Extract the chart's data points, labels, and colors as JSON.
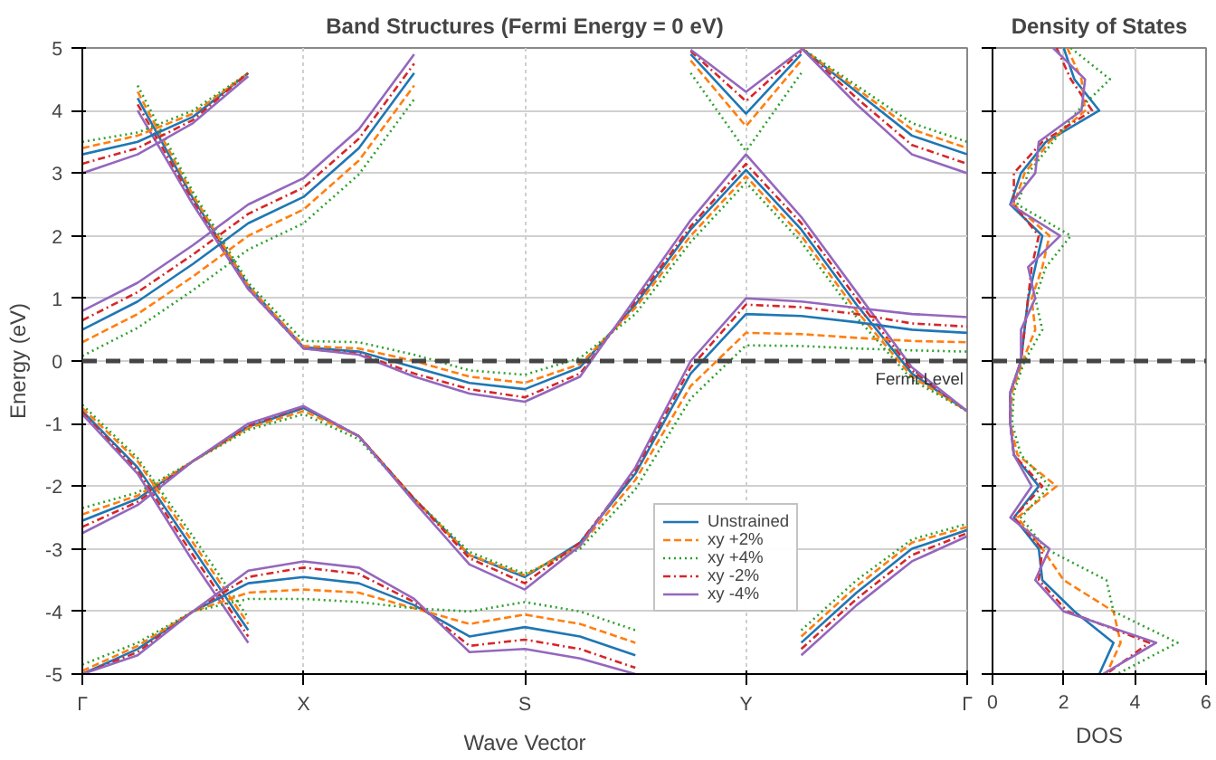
{
  "chart_data": [
    {
      "type": "line",
      "title": "Band Structures (Fermi Energy = 0 eV)",
      "xlabel": "Wave Vector",
      "ylabel": "Energy (eV)",
      "categories": [
        "Γ",
        null,
        null,
        null,
        "X",
        null,
        null,
        null,
        "S",
        null,
        null,
        null,
        "Y",
        null,
        null,
        null,
        "Γ"
      ],
      "ylim": [
        -5,
        5
      ],
      "yticks": [
        -5,
        -4,
        -3,
        -2,
        -1,
        0,
        1,
        2,
        3,
        4,
        5
      ],
      "grid": true,
      "legend": "bottom right",
      "ref_lines": [
        {
          "axis": "y",
          "value": 0,
          "label": "Fermi Level",
          "color": "#444444",
          "line_style": "dashed"
        }
      ],
      "series": [
        {
          "name": "Unstrained",
          "color": "#1f77b4",
          "line_style": "solid",
          "values": [
            null,
            4.2,
            2.6,
            1.2,
            0.22,
            0.15,
            -0.1,
            -0.35,
            -0.45,
            -0.1,
            0.9,
            2.1,
            3.05,
            2.1,
            0.9,
            -0.2,
            -0.8
          ]
        },
        {
          "name": "xy +2%",
          "color": "#ff7f0e",
          "line_style": "dashed",
          "values": [
            null,
            4.3,
            2.65,
            1.2,
            0.24,
            0.2,
            0,
            -0.25,
            -0.35,
            -0.05,
            0.85,
            2.0,
            2.95,
            2.0,
            0.8,
            -0.25,
            -0.8
          ]
        },
        {
          "name": "xy +4%",
          "color": "#2ca02c",
          "line_style": "dotted",
          "values": [
            null,
            4.4,
            2.7,
            1.25,
            0.32,
            0.3,
            0.1,
            -0.15,
            -0.22,
            0.05,
            0.75,
            1.9,
            2.85,
            1.9,
            0.7,
            -0.3,
            -0.8
          ]
        },
        {
          "name": "xy -2%",
          "color": "#d62728",
          "line_style": "dashdot",
          "values": [
            null,
            4.1,
            2.55,
            1.15,
            0.2,
            0.12,
            -0.2,
            -0.45,
            -0.58,
            -0.2,
            0.95,
            2.15,
            3.15,
            2.2,
            1.0,
            -0.15,
            -0.8
          ]
        },
        {
          "name": "xy -4%",
          "color": "#9467bd",
          "line_style": "solid",
          "values": [
            null,
            4.0,
            2.5,
            1.15,
            0.2,
            0.1,
            -0.25,
            -0.52,
            -0.65,
            -0.25,
            1.0,
            2.25,
            3.3,
            2.3,
            1.1,
            -0.1,
            -0.8
          ]
        },
        {
          "color": "#1f77b4",
          "line_style": "solid",
          "values": [
            0.5,
            0.95,
            1.55,
            2.2,
            2.62,
            3.4,
            4.6,
            null,
            null,
            null,
            null,
            null,
            null,
            null,
            null,
            null,
            null
          ]
        },
        {
          "color": "#ff7f0e",
          "line_style": "dashed",
          "values": [
            0.3,
            0.75,
            1.35,
            2.0,
            2.42,
            3.2,
            4.4,
            null,
            null,
            null,
            null,
            null,
            null,
            null,
            null,
            null,
            null
          ]
        },
        {
          "color": "#2ca02c",
          "line_style": "dotted",
          "values": [
            0.08,
            0.53,
            1.13,
            1.78,
            2.2,
            2.98,
            4.18,
            null,
            null,
            null,
            null,
            null,
            null,
            null,
            null,
            null,
            null
          ]
        },
        {
          "color": "#d62728",
          "line_style": "dashdot",
          "values": [
            0.65,
            1.1,
            1.7,
            2.35,
            2.77,
            3.55,
            4.75,
            null,
            null,
            null,
            null,
            null,
            null,
            null,
            null,
            null,
            null
          ]
        },
        {
          "color": "#9467bd",
          "line_style": "solid",
          "values": [
            0.8,
            1.25,
            1.85,
            2.5,
            2.92,
            3.7,
            4.9,
            null,
            null,
            null,
            null,
            null,
            null,
            null,
            null,
            null,
            null
          ]
        },
        {
          "color": "#1f77b4",
          "line_style": "solid",
          "values": [
            -2.55,
            -2.2,
            -1.6,
            -1.05,
            -0.75,
            -1.2,
            -2.2,
            -3.1,
            -3.45,
            -2.9,
            -1.8,
            -0.2,
            0.75,
            0.72,
            0.62,
            0.5,
            0.45
          ]
        },
        {
          "color": "#ff7f0e",
          "line_style": "dashed",
          "values": [
            -2.45,
            -2.15,
            -1.6,
            -1.07,
            -0.8,
            -1.2,
            -2.2,
            -3.1,
            -3.42,
            -2.95,
            -1.9,
            -0.4,
            0.45,
            0.43,
            0.37,
            0.32,
            0.3
          ]
        },
        {
          "color": "#2ca02c",
          "line_style": "dotted",
          "values": [
            -2.35,
            -2.1,
            -1.6,
            -1.1,
            -0.85,
            -1.25,
            -2.2,
            -3.05,
            -3.4,
            -3.0,
            -2.05,
            -0.6,
            0.25,
            0.24,
            0.2,
            0.17,
            0.15
          ]
        },
        {
          "color": "#d62728",
          "line_style": "dashdot",
          "values": [
            -2.65,
            -2.25,
            -1.6,
            -1.03,
            -0.73,
            -1.2,
            -2.2,
            -3.15,
            -3.55,
            -2.9,
            -1.75,
            -0.1,
            0.9,
            0.86,
            0.75,
            0.6,
            0.55
          ]
        },
        {
          "color": "#9467bd",
          "line_style": "solid",
          "values": [
            -2.75,
            -2.3,
            -1.6,
            -1.0,
            -0.72,
            -1.2,
            -2.25,
            -3.25,
            -3.65,
            -2.95,
            -1.7,
            0.0,
            1.0,
            0.95,
            0.85,
            0.75,
            0.7
          ]
        },
        {
          "color": "#1f77b4",
          "line_style": "solid",
          "values": [
            -0.8,
            -1.7,
            -3.0,
            -4.3,
            null,
            null,
            null,
            null,
            null,
            null,
            null,
            null,
            null,
            null,
            null,
            null,
            null
          ]
        },
        {
          "color": "#ff7f0e",
          "line_style": "dashed",
          "values": [
            -0.75,
            -1.6,
            -2.9,
            -4.2,
            null,
            null,
            null,
            null,
            null,
            null,
            null,
            null,
            null,
            null,
            null,
            null,
            null
          ]
        },
        {
          "color": "#2ca02c",
          "line_style": "dotted",
          "values": [
            -0.7,
            -1.55,
            -2.8,
            -4.1,
            null,
            null,
            null,
            null,
            null,
            null,
            null,
            null,
            null,
            null,
            null,
            null,
            null
          ]
        },
        {
          "color": "#d62728",
          "line_style": "dashdot",
          "values": [
            -0.82,
            -1.75,
            -3.1,
            -4.4,
            null,
            null,
            null,
            null,
            null,
            null,
            null,
            null,
            null,
            null,
            null,
            null,
            null
          ]
        },
        {
          "color": "#9467bd",
          "line_style": "solid",
          "values": [
            -0.85,
            -1.8,
            -3.2,
            -4.5,
            null,
            null,
            null,
            null,
            null,
            null,
            null,
            null,
            null,
            null,
            null,
            null,
            null
          ]
        },
        {
          "color": "#1f77b4",
          "line_style": "solid",
          "values": [
            -5,
            -4.6,
            -4.0,
            -3.55,
            -3.45,
            -3.55,
            -3.9,
            -4.4,
            -4.25,
            -4.4,
            -4.7,
            null,
            null,
            null,
            null,
            null,
            null
          ]
        },
        {
          "color": "#ff7f0e",
          "line_style": "dashed",
          "values": [
            -4.95,
            -4.55,
            -4.0,
            -3.7,
            -3.65,
            -3.7,
            -3.95,
            -4.2,
            -4.05,
            -4.2,
            -4.5,
            null,
            null,
            null,
            null,
            null,
            null
          ]
        },
        {
          "color": "#2ca02c",
          "line_style": "dotted",
          "values": [
            -4.85,
            -4.5,
            -4.0,
            -3.8,
            -3.8,
            -3.85,
            -3.95,
            -4.0,
            -3.85,
            -4.0,
            -4.3,
            null,
            null,
            null,
            null,
            null,
            null
          ]
        },
        {
          "color": "#d62728",
          "line_style": "dashdot",
          "values": [
            -5,
            -4.65,
            -4.0,
            -3.45,
            -3.3,
            -3.4,
            -3.85,
            -4.55,
            -4.45,
            -4.6,
            -4.9,
            null,
            null,
            null,
            null,
            null,
            null
          ]
        },
        {
          "color": "#9467bd",
          "line_style": "solid",
          "values": [
            -5,
            -4.7,
            -4.0,
            -3.35,
            -3.2,
            -3.3,
            -3.8,
            -4.65,
            -4.6,
            -4.75,
            -5,
            null,
            null,
            null,
            null,
            null,
            null
          ]
        },
        {
          "color": "#1f77b4",
          "line_style": "solid",
          "values": [
            null,
            null,
            null,
            null,
            null,
            null,
            null,
            null,
            null,
            null,
            null,
            null,
            null,
            -4.5,
            -3.7,
            -3.0,
            -2.7
          ]
        },
        {
          "color": "#ff7f0e",
          "line_style": "dashed",
          "values": [
            null,
            null,
            null,
            null,
            null,
            null,
            null,
            null,
            null,
            null,
            null,
            null,
            null,
            -4.4,
            -3.6,
            -2.9,
            -2.65
          ]
        },
        {
          "color": "#2ca02c",
          "line_style": "dotted",
          "values": [
            null,
            null,
            null,
            null,
            null,
            null,
            null,
            null,
            null,
            null,
            null,
            null,
            null,
            -4.3,
            -3.5,
            -2.85,
            -2.6
          ]
        },
        {
          "color": "#d62728",
          "line_style": "dashdot",
          "values": [
            null,
            null,
            null,
            null,
            null,
            null,
            null,
            null,
            null,
            null,
            null,
            null,
            null,
            -4.6,
            -3.8,
            -3.1,
            -2.75
          ]
        },
        {
          "color": "#9467bd",
          "line_style": "solid",
          "values": [
            null,
            null,
            null,
            null,
            null,
            null,
            null,
            null,
            null,
            null,
            null,
            null,
            null,
            -4.7,
            -3.9,
            -3.2,
            -2.8
          ]
        },
        {
          "color": "#1f77b4",
          "line_style": "solid",
          "values": [
            3.3,
            3.5,
            3.9,
            4.6,
            null,
            null,
            null,
            null,
            null,
            null,
            null,
            null,
            null,
            null,
            null,
            null,
            null
          ]
        },
        {
          "color": "#ff7f0e",
          "line_style": "dashed",
          "values": [
            3.4,
            3.6,
            3.95,
            4.6,
            null,
            null,
            null,
            null,
            null,
            null,
            null,
            null,
            null,
            null,
            null,
            null,
            null
          ]
        },
        {
          "color": "#2ca02c",
          "line_style": "dotted",
          "values": [
            3.5,
            3.65,
            4.0,
            4.6,
            null,
            null,
            null,
            null,
            null,
            null,
            null,
            null,
            null,
            null,
            null,
            null,
            null
          ]
        },
        {
          "color": "#d62728",
          "line_style": "dashdot",
          "values": [
            3.15,
            3.4,
            3.85,
            4.6,
            null,
            null,
            null,
            null,
            null,
            null,
            null,
            null,
            null,
            null,
            null,
            null,
            null
          ]
        },
        {
          "color": "#9467bd",
          "line_style": "solid",
          "values": [
            3.0,
            3.3,
            3.8,
            4.55,
            null,
            null,
            null,
            null,
            null,
            null,
            null,
            null,
            null,
            null,
            null,
            null,
            null
          ]
        },
        {
          "color": "#1f77b4",
          "line_style": "solid",
          "values": [
            null,
            null,
            null,
            null,
            null,
            null,
            null,
            null,
            null,
            null,
            null,
            4.9,
            3.95,
            4.9,
            null,
            null,
            null
          ]
        },
        {
          "color": "#ff7f0e",
          "line_style": "dashed",
          "values": [
            null,
            null,
            null,
            null,
            null,
            null,
            null,
            null,
            null,
            null,
            null,
            4.8,
            3.75,
            4.8,
            null,
            null,
            null
          ]
        },
        {
          "color": "#2ca02c",
          "line_style": "dotted",
          "values": [
            null,
            null,
            null,
            null,
            null,
            null,
            null,
            null,
            null,
            null,
            null,
            4.6,
            3.35,
            4.6,
            null,
            null,
            null
          ]
        },
        {
          "color": "#d62728",
          "line_style": "dashdot",
          "values": [
            null,
            null,
            null,
            null,
            null,
            null,
            null,
            null,
            null,
            null,
            null,
            4.95,
            4.15,
            4.95,
            null,
            null,
            null
          ]
        },
        {
          "color": "#9467bd",
          "line_style": "solid",
          "values": [
            null,
            null,
            null,
            null,
            null,
            null,
            null,
            null,
            null,
            null,
            null,
            4.97,
            4.3,
            4.97,
            null,
            null,
            null
          ]
        },
        {
          "color": "#1f77b4",
          "line_style": "solid",
          "values": [
            null,
            null,
            null,
            null,
            null,
            null,
            null,
            null,
            null,
            null,
            null,
            null,
            null,
            5,
            4.3,
            3.6,
            3.3
          ]
        },
        {
          "color": "#ff7f0e",
          "line_style": "dashed",
          "values": [
            null,
            null,
            null,
            null,
            null,
            null,
            null,
            null,
            null,
            null,
            null,
            null,
            null,
            5,
            4.35,
            3.7,
            3.4
          ]
        },
        {
          "color": "#2ca02c",
          "line_style": "dotted",
          "values": [
            null,
            null,
            null,
            null,
            null,
            null,
            null,
            null,
            null,
            null,
            null,
            null,
            null,
            5,
            4.4,
            3.8,
            3.5
          ]
        },
        {
          "color": "#d62728",
          "line_style": "dashdot",
          "values": [
            null,
            null,
            null,
            null,
            null,
            null,
            null,
            null,
            null,
            null,
            null,
            null,
            null,
            5,
            4.2,
            3.45,
            3.15
          ]
        },
        {
          "color": "#9467bd",
          "line_style": "solid",
          "values": [
            null,
            null,
            null,
            null,
            null,
            null,
            null,
            null,
            null,
            null,
            null,
            null,
            null,
            5,
            4.1,
            3.3,
            3.0
          ]
        }
      ]
    },
    {
      "type": "line",
      "title": "Density of States",
      "xlabel": "DOS",
      "xlim": [
        0,
        6
      ],
      "xticks": [
        0,
        2,
        4,
        6
      ],
      "ylim": [
        -5,
        5
      ],
      "yticks": [
        {
          "value": -5,
          "label": null
        },
        {
          "value": -4,
          "label": null
        },
        {
          "value": -3,
          "label": null
        },
        {
          "value": -2,
          "label": null
        },
        {
          "value": -1,
          "label": null
        },
        {
          "value": 0,
          "label": null
        },
        {
          "value": 1,
          "label": null
        },
        {
          "value": 2,
          "label": null
        },
        {
          "value": 3,
          "label": null
        },
        {
          "value": 4,
          "label": null
        },
        {
          "value": 5,
          "label": null
        }
      ],
      "tick_labels": "x",
      "grid": true,
      "ref_lines": [
        {
          "axis": "y",
          "value": 0,
          "color": "#444444",
          "line_style": "dashed"
        }
      ],
      "series": [
        {
          "color": "#1f77b4",
          "line_style": "solid",
          "x": [
            2.0,
            2.3,
            3.0,
            1.5,
            0.8,
            0.5,
            1.4,
            1.2,
            1.0,
            0.9,
            0.8,
            0.5,
            0.5,
            0.6,
            1.3,
            0.6,
            1.3,
            1.4,
            2.3,
            3.4,
            3.0
          ],
          "values": [
            5,
            4.5,
            4,
            3.5,
            3,
            2.5,
            2,
            1.5,
            1,
            0.5,
            0,
            -0.5,
            -1,
            -1.5,
            -2,
            -2.5,
            -3,
            -3.5,
            -4,
            -4.5,
            -5
          ]
        },
        {
          "color": "#ff7f0e",
          "line_style": "dashed",
          "x": [
            2.1,
            2.5,
            2.6,
            1.6,
            0.9,
            0.6,
            1.6,
            1.4,
            1.1,
            1.2,
            0.85,
            0.55,
            0.5,
            0.7,
            1.8,
            0.7,
            1.4,
            2.0,
            3.4,
            3.6,
            3.2
          ],
          "values": [
            5,
            4.5,
            4,
            3.5,
            3,
            2.5,
            2,
            1.5,
            1,
            0.5,
            0,
            -0.5,
            -1,
            -1.5,
            -2,
            -2.5,
            -3,
            -3.5,
            -4,
            -4.5,
            -5
          ]
        },
        {
          "color": "#2ca02c",
          "line_style": "dotted",
          "x": [
            2.2,
            3.3,
            2.4,
            1.7,
            1.0,
            0.7,
            2.2,
            1.5,
            1.2,
            1.4,
            0.9,
            0.6,
            0.55,
            0.8,
            1.6,
            0.8,
            1.5,
            3.2,
            3.4,
            5.2,
            3.5
          ],
          "values": [
            5,
            4.5,
            4,
            3.5,
            3,
            2.5,
            2,
            1.5,
            1,
            0.5,
            0,
            -0.5,
            -1,
            -1.5,
            -2,
            -2.5,
            -3,
            -3.5,
            -4,
            -4.5,
            -5
          ]
        },
        {
          "color": "#d62728",
          "line_style": "dashdot",
          "x": [
            1.8,
            2.2,
            2.8,
            1.4,
            0.6,
            0.6,
            1.3,
            1.1,
            1.0,
            0.9,
            0.8,
            0.5,
            0.5,
            0.6,
            1.4,
            0.6,
            1.4,
            1.3,
            2.1,
            4.4,
            3.2
          ],
          "values": [
            5,
            4.5,
            4,
            3.5,
            3,
            2.5,
            2,
            1.5,
            1,
            0.5,
            0,
            -0.5,
            -1,
            -1.5,
            -2,
            -2.5,
            -3,
            -3.5,
            -4,
            -4.5,
            -5
          ]
        },
        {
          "color": "#9467bd",
          "line_style": "solid",
          "x": [
            1.7,
            2.6,
            2.5,
            1.3,
            1.2,
            0.5,
            1.9,
            1.0,
            1.2,
            0.8,
            0.8,
            0.5,
            0.5,
            0.6,
            1.1,
            0.5,
            1.6,
            1.2,
            2.0,
            4.6,
            3.1
          ],
          "values": [
            5,
            4.5,
            4,
            3.5,
            3,
            2.5,
            2,
            1.5,
            1,
            0.5,
            0,
            -0.5,
            -1,
            -1.5,
            -2,
            -2.5,
            -3,
            -3.5,
            -4,
            -4.5,
            -5
          ]
        }
      ]
    }
  ]
}
